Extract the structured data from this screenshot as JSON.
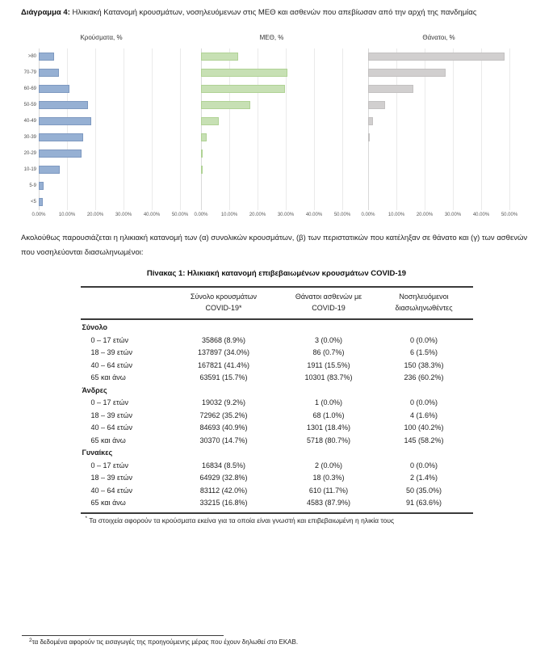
{
  "title": {
    "bold": "Διάγραμμα 4:",
    "rest": " Ηλικιακή Κατανομή κρουσμάτων, νοσηλευόμενων στις ΜΕΘ και ασθενών που απεβίωσαν από την αρχή της πανδημίας"
  },
  "chart_data": [
    {
      "type": "bar",
      "title": "Κρούσματα, %",
      "categories": [
        ">80",
        "70-79",
        "60-69",
        "50-59",
        "40-49",
        "30-39",
        "20-29",
        "10-19",
        "5-9",
        "<5"
      ],
      "values": [
        5.4,
        7.0,
        10.8,
        17.3,
        18.5,
        15.6,
        15.2,
        7.5,
        1.8,
        1.5
      ],
      "xlabel": "",
      "ylabel": "",
      "xlim": [
        0,
        50
      ],
      "tick_labels": [
        "0.00%",
        "10.00%",
        "20.00%",
        "30.00%",
        "40.00%",
        "50.00%"
      ],
      "grid": true,
      "bar_color": "#96b0d3",
      "bar_border": "#7e99c0",
      "show_category_labels": true
    },
    {
      "type": "bar",
      "title": "ΜΕΘ, %",
      "categories": [
        ">80",
        "70-79",
        "60-69",
        "50-59",
        "40-49",
        "30-39",
        "20-29",
        "10-19",
        "5-9",
        "<5"
      ],
      "values": [
        13.1,
        30.6,
        29.6,
        17.3,
        6.4,
        2.1,
        0.5,
        0.2,
        0,
        0
      ],
      "xlabel": "",
      "ylabel": "",
      "xlim": [
        0,
        50
      ],
      "tick_labels": [
        "0.00%",
        "10.00%",
        "20.00%",
        "30.00%",
        "40.00%",
        "50.00%"
      ],
      "grid": true,
      "bar_color": "#c7e0b4",
      "bar_border": "#b0d295",
      "show_category_labels": false
    },
    {
      "type": "bar",
      "title": "Θάνατοι, %",
      "categories": [
        ">80",
        "70-79",
        "60-69",
        "50-59",
        "40-49",
        "30-39",
        "20-29",
        "10-19",
        "5-9",
        "<5"
      ],
      "values": [
        48.3,
        27.4,
        16.0,
        6.1,
        1.7,
        0.3,
        0,
        0,
        0,
        0
      ],
      "xlabel": "",
      "ylabel": "",
      "xlim": [
        0,
        50
      ],
      "tick_labels": [
        "0.00%",
        "10.00%",
        "20.00%",
        "30.00%",
        "40.00%",
        "50.00%"
      ],
      "grid": true,
      "bar_color": "#d1cfcf",
      "bar_border": "#c3c1c1",
      "show_category_labels": false
    }
  ],
  "paragraph": "Ακολούθως παρουσιάζεται η ηλικιακή κατανομή των (α) συνολικών κρουσμάτων, (β) των περιστατικών που κατέληξαν σε θάνατο και (γ) των ασθενών που νοσηλεύονται διασωληνωμένοι:",
  "table_title": "Πίνακας 1: Ηλικιακή κατανομή επιβεβαιωμένων κρουσμάτων COVID-19",
  "table": {
    "header": [
      {
        "l1": "",
        "l2": ""
      },
      {
        "l1": "Σύνολο κρουσμάτων",
        "l2": "COVID-19*"
      },
      {
        "l1": "Θάνατοι ασθενών με",
        "l2": "COVID-19"
      },
      {
        "l1": "Νοσηλευόμενοι",
        "l2": "διασωληνωθέντες"
      }
    ],
    "sections": [
      {
        "label": "Σύνολο",
        "rows": [
          [
            "0 – 17 ετών",
            "35868 (8.9%)",
            "3 (0.0%)",
            "0 (0.0%)"
          ],
          [
            "18 – 39 ετών",
            "137897 (34.0%)",
            "86 (0.7%)",
            "6 (1.5%)"
          ],
          [
            "40 – 64 ετών",
            "167821 (41.4%)",
            "1911 (15.5%)",
            "150 (38.3%)"
          ],
          [
            "65 και άνω",
            "63591 (15.7%)",
            "10301 (83.7%)",
            "236 (60.2%)"
          ]
        ]
      },
      {
        "label": "Άνδρες",
        "rows": [
          [
            "0 – 17 ετών",
            "19032 (9.2%)",
            "1 (0.0%)",
            "0 (0.0%)"
          ],
          [
            "18 – 39 ετών",
            "72962 (35.2%)",
            "68 (1.0%)",
            "4 (1.6%)"
          ],
          [
            "40 – 64 ετών",
            "84693 (40.9%)",
            "1301 (18.4%)",
            "100 (40.2%)"
          ],
          [
            "65 και άνω",
            "30370 (14.7%)",
            "5718 (80.7%)",
            "145 (58.2%)"
          ]
        ]
      },
      {
        "label": "Γυναίκες",
        "rows": [
          [
            "0 – 17 ετών",
            "16834 (8.5%)",
            "2 (0.0%)",
            "0 (0.0%)"
          ],
          [
            "18 – 39 ετών",
            "64929 (32.8%)",
            "18 (0.3%)",
            "2 (1.4%)"
          ],
          [
            "40 – 64 ετών",
            "83112 (42.0%)",
            "610 (11.7%)",
            "50 (35.0%)"
          ],
          [
            "65 και άνω",
            "33215 (16.8%)",
            "4583 (87.9%)",
            "91 (63.6%)"
          ]
        ]
      }
    ]
  },
  "footnotes": {
    "table_marker": "*",
    "table_text": " Τα στοιχεία αφορούν τα κρούσματα εκείνα για τα οποία είναι γνωστή και επιβεβαιωμένη η ηλικία τους",
    "bottom_marker": "2",
    "bottom_text": "τα δεδομένα αφορούν τις εισαγωγές της προηγούμενης μέρας που έχουν δηλωθεί στο ΕΚΑΒ."
  }
}
